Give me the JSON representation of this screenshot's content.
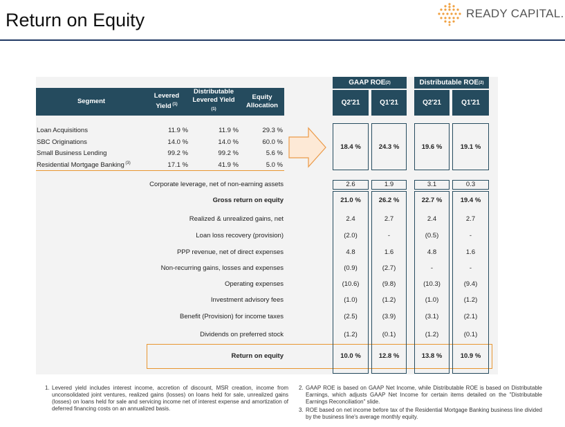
{
  "header": {
    "title": "Return on Equity",
    "logo": "READY CAPITAL."
  },
  "segment_table": {
    "columns": [
      {
        "label": "Segment"
      },
      {
        "label": "Levered Yield",
        "note": "(1)"
      },
      {
        "label": "Distributable Levered Yield",
        "note": "(1)"
      },
      {
        "label": "Equity Allocation"
      }
    ],
    "rows": [
      {
        "segment": "Loan Acquisitions",
        "cells": [
          "11.9 %",
          "11.9 %",
          "29.3 %"
        ]
      },
      {
        "segment": "SBC Originations",
        "cells": [
          "14.0 %",
          "14.0 %",
          "60.0 %"
        ]
      },
      {
        "segment": "Small Business Lending",
        "cells": [
          "99.2 %",
          "99.2 %",
          "5.6 %"
        ]
      },
      {
        "segment": "Residential Mortgage Banking",
        "note": "(3)",
        "cells": [
          "17.1 %",
          "41.9 %",
          "5.0 %"
        ]
      }
    ]
  },
  "roe_groups": [
    {
      "title": "GAAP ROE",
      "note": "(2)",
      "periods": [
        "Q2'21",
        "Q1'21"
      ]
    },
    {
      "title": "Distributable ROE",
      "note": "(2)",
      "periods": [
        "Q2'21",
        "Q1'21"
      ]
    }
  ],
  "segment_roe": [
    "18.4 %",
    "24.3 %",
    "19.6 %",
    "19.1 %"
  ],
  "bridge": [
    {
      "label": "Corporate leverage, net of non-earning assets",
      "values": [
        "2.6",
        "1.9",
        "3.1",
        "0.3"
      ]
    },
    {
      "label": "Gross return on equity",
      "bold": true,
      "values": [
        "21.0 %",
        "26.2 %",
        "22.7 %",
        "19.4 %"
      ]
    },
    {
      "label": "Realized & unrealized gains, net",
      "values": [
        "2.4",
        "2.7",
        "2.4",
        "2.7"
      ]
    },
    {
      "label": "Loan loss recovery (provision)",
      "values": [
        "(2.0)",
        "-",
        "(0.5)",
        "-"
      ]
    },
    {
      "label": "PPP revenue, net of direct expenses",
      "values": [
        "4.8",
        "1.6",
        "4.8",
        "1.6"
      ]
    },
    {
      "label": "Non-recurring gains, losses and expenses",
      "values": [
        "(0.9)",
        "(2.7)",
        "-",
        "-"
      ]
    },
    {
      "label": "Operating expenses",
      "values": [
        "(10.6)",
        "(9.8)",
        "(10.3)",
        "(9.4)"
      ]
    },
    {
      "label": "Investment advisory fees",
      "values": [
        "(1.0)",
        "(1.2)",
        "(1.0)",
        "(1.2)"
      ]
    },
    {
      "label": "Benefit (Provision) for income taxes",
      "values": [
        "(2.5)",
        "(3.9)",
        "(3.1)",
        "(2.1)"
      ]
    },
    {
      "label": "Dividends on preferred stock",
      "values": [
        "(1.2)",
        "(0.1)",
        "(1.2)",
        "(0.1)"
      ]
    },
    {
      "label": "Return on equity",
      "bold": true,
      "values": [
        "10.0 %",
        "12.8 %",
        "13.8 %",
        "10.9 %"
      ]
    }
  ],
  "footnotes": [
    {
      "number": "1.",
      "text": "Levered yield includes interest income, accretion of discount, MSR creation, income from unconsolidated joint ventures, realized gains (losses) on loans held for sale, unrealized gains (losses) on loans held for sale and servicing income net of interest expense and amortization of deferred financing costs on an annualized basis."
    },
    {
      "number": "2.",
      "text": "GAAP ROE is based on GAAP Net Income, while Distributable ROE is based on Distributable Earnings, which adjusts GAAP Net Income for certain items detailed on the \"Distributable Earnings Reconciliation\" slide."
    },
    {
      "number": "3.",
      "text": "ROE based on net income before tax of the Residential Mortgage Banking business line divided by the business line's average monthly equity."
    }
  ]
}
